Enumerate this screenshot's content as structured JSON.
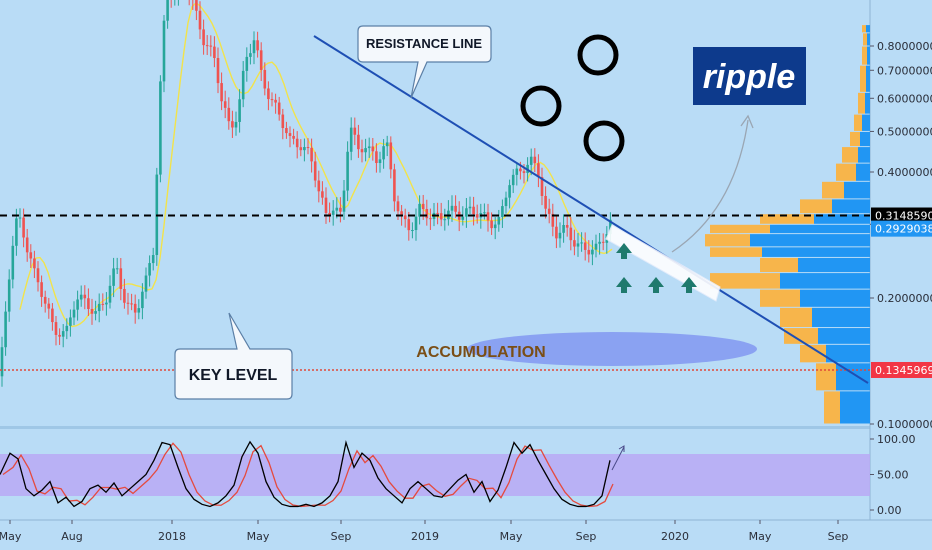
{
  "chart_data": [
    {
      "type": "candlestick",
      "title": "",
      "x_axis": {
        "ticks": [
          "May",
          "Aug",
          "2018",
          "May",
          "Sep",
          "2019",
          "May",
          "Sep",
          "2020",
          "May",
          "Sep"
        ]
      },
      "y_axis": {
        "scale": "log",
        "ticks": [
          0.1,
          0.2,
          0.3,
          0.4,
          0.5,
          0.6,
          0.7,
          0.8
        ],
        "tick_labels": [
          "0.10000000",
          "0.20000000",
          "0.30000000",
          "0.40000000",
          "0.50000000",
          "0.60000000",
          "0.70000000",
          "0.80000000"
        ]
      },
      "price_tags": [
        {
          "label": "0.31485901",
          "value": 0.31485901,
          "color": "#000000"
        },
        {
          "label": "0.29290380",
          "value": 0.2929038,
          "color": "#2196f3"
        },
        {
          "label": "0.13459698",
          "value": 0.13459698,
          "color": "#f23645"
        }
      ],
      "key_level": 0.31485901,
      "support_level": 0.13459698,
      "colors": {
        "up": "#26a69a",
        "down": "#ef5350",
        "ma": "#f2e34b",
        "resistance": "#1e4fb4",
        "volume_profile_blue": "#2196f3",
        "volume_profile_orange": "#f7b54b"
      },
      "grid": false
    },
    {
      "type": "line",
      "title": "",
      "y_axis": {
        "ticks": [
          0,
          50,
          100
        ],
        "tick_labels": [
          "0.00",
          "50.00",
          "100.00"
        ],
        "range": [
          0,
          100
        ]
      },
      "band": [
        20,
        80
      ],
      "series_colors": [
        "#000000",
        "#e54a3e"
      ]
    }
  ],
  "annotations": {
    "resistance_line": "RESISTANCE LINE",
    "key_level": "KEY LEVEL",
    "accumulation": "ACCUMULATION",
    "logo": "ripple"
  }
}
